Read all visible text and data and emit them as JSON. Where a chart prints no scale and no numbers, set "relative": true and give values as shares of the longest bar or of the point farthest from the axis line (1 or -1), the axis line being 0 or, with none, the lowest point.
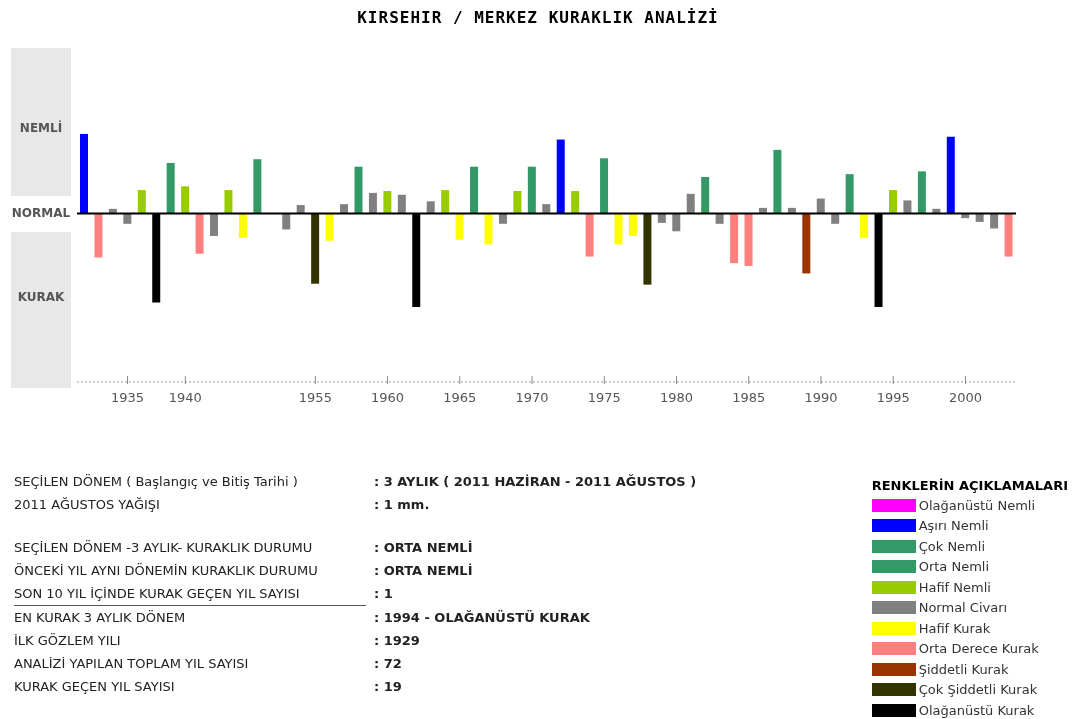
{
  "chart_data": {
    "type": "bar",
    "title": "KIRSEHIR / MERKEZ KURAKLIK ANALİZİ",
    "relative": true,
    "stacked": true,
    "legend": "bottom right",
    "legend_title": "RENKLERİN AÇIKLAMALARI",
    "categories": [
      null,
      null,
      null,
      "1935",
      null,
      null,
      null,
      "1940",
      null,
      null,
      null,
      null,
      null,
      null,
      null,
      null,
      "1955",
      null,
      null,
      null,
      null,
      "1960",
      null,
      null,
      null,
      null,
      "1965",
      null,
      null,
      null,
      null,
      "1970",
      null,
      null,
      null,
      null,
      "1975",
      null,
      null,
      null,
      null,
      "1980",
      null,
      null,
      null,
      null,
      "1985",
      null,
      null,
      null,
      null,
      "1990",
      null,
      null,
      null,
      null,
      "1995",
      null,
      null,
      null,
      null,
      "2000",
      null,
      null,
      null
    ],
    "series": [
      {
        "name": "Olağanüstü Nemli",
        "color": "#ff00ff",
        "values": [
          null,
          null,
          null,
          null,
          null,
          null,
          null,
          null,
          null,
          null,
          null,
          null,
          null,
          null,
          null,
          null,
          null,
          null,
          null,
          null,
          null,
          null,
          null,
          null,
          null,
          null,
          null,
          null,
          null,
          null,
          null,
          null,
          null,
          null,
          null,
          null,
          null,
          null,
          null,
          null,
          null,
          null,
          null,
          null,
          null,
          null,
          null,
          null,
          null,
          null,
          null,
          null,
          null,
          null,
          null,
          null,
          null,
          null,
          null,
          null,
          null,
          null,
          null,
          null,
          null
        ]
      },
      {
        "name": "Aşırı Nemli",
        "color": "#0000ff",
        "values": [
          0.85,
          null,
          null,
          null,
          null,
          null,
          null,
          null,
          null,
          null,
          null,
          null,
          null,
          null,
          null,
          null,
          null,
          null,
          null,
          null,
          null,
          null,
          null,
          null,
          null,
          null,
          null,
          null,
          null,
          null,
          null,
          null,
          null,
          0.79,
          null,
          null,
          null,
          null,
          null,
          null,
          null,
          null,
          null,
          null,
          null,
          null,
          null,
          null,
          null,
          null,
          null,
          null,
          null,
          null,
          null,
          null,
          null,
          null,
          null,
          null,
          0.82,
          null,
          null,
          null,
          null
        ]
      },
      {
        "name": "Çok Nemli",
        "color": "#339966",
        "values": [
          null,
          null,
          null,
          null,
          null,
          null,
          0.54,
          null,
          null,
          null,
          null,
          null,
          0.58,
          null,
          null,
          null,
          null,
          null,
          null,
          null,
          null,
          null,
          null,
          null,
          null,
          null,
          null,
          null,
          null,
          null,
          null,
          null,
          null,
          null,
          null,
          null,
          0.59,
          null,
          null,
          null,
          null,
          null,
          null,
          null,
          null,
          null,
          null,
          null,
          0.68,
          null,
          null,
          null,
          null,
          null,
          null,
          null,
          null,
          null,
          null,
          null,
          null,
          null,
          null,
          null,
          null
        ]
      },
      {
        "name": "Orta Nemli",
        "color": "#339966",
        "values": [
          null,
          null,
          null,
          null,
          null,
          null,
          null,
          null,
          null,
          null,
          null,
          null,
          null,
          null,
          null,
          null,
          null,
          null,
          null,
          0.5,
          null,
          null,
          null,
          null,
          null,
          null,
          null,
          0.5,
          null,
          null,
          null,
          0.5,
          null,
          null,
          null,
          null,
          null,
          null,
          null,
          null,
          null,
          null,
          null,
          0.39,
          null,
          null,
          null,
          null,
          null,
          null,
          null,
          null,
          null,
          0.42,
          null,
          null,
          null,
          null,
          0.45,
          null,
          null,
          null,
          null,
          null,
          null
        ]
      },
      {
        "name": "Hafif Nemli",
        "color": "#99cc00",
        "values": [
          null,
          null,
          null,
          null,
          0.25,
          null,
          null,
          0.29,
          null,
          null,
          0.25,
          null,
          null,
          null,
          null,
          null,
          null,
          null,
          null,
          null,
          null,
          0.24,
          null,
          null,
          null,
          0.25,
          null,
          null,
          null,
          null,
          0.24,
          null,
          null,
          null,
          0.24,
          null,
          null,
          null,
          null,
          null,
          null,
          null,
          null,
          null,
          null,
          null,
          null,
          null,
          null,
          null,
          null,
          null,
          null,
          null,
          null,
          null,
          0.25,
          null,
          null,
          null,
          null,
          null,
          null,
          null,
          null
        ]
      },
      {
        "name": "Normal Civarı",
        "color": "#808080",
        "values": [
          null,
          null,
          0.05,
          -0.11,
          null,
          null,
          null,
          null,
          null,
          -0.24,
          null,
          null,
          null,
          null,
          -0.17,
          0.09,
          null,
          null,
          0.1,
          null,
          0.22,
          null,
          0.2,
          null,
          0.13,
          null,
          null,
          null,
          null,
          -0.11,
          null,
          null,
          0.1,
          null,
          null,
          null,
          null,
          null,
          null,
          null,
          -0.1,
          -0.19,
          0.21,
          null,
          -0.11,
          null,
          null,
          0.06,
          null,
          0.06,
          null,
          0.16,
          -0.11,
          null,
          null,
          null,
          null,
          0.14,
          null,
          0.05,
          null,
          -0.05,
          -0.09,
          -0.16,
          null
        ]
      },
      {
        "name": "Hafif Kurak",
        "color": "#ffff00",
        "values": [
          null,
          null,
          null,
          null,
          null,
          null,
          null,
          null,
          null,
          null,
          null,
          -0.26,
          null,
          null,
          null,
          null,
          null,
          -0.29,
          null,
          null,
          null,
          null,
          null,
          null,
          null,
          null,
          -0.28,
          null,
          -0.33,
          null,
          null,
          null,
          null,
          null,
          null,
          null,
          null,
          -0.33,
          -0.24,
          null,
          null,
          null,
          null,
          null,
          null,
          null,
          null,
          null,
          null,
          null,
          null,
          null,
          null,
          null,
          -0.26,
          null,
          null,
          null,
          null,
          null,
          null,
          null,
          null,
          null,
          null
        ]
      },
      {
        "name": "Orta Derece Kurak",
        "color": "#ff7f7f",
        "values": [
          null,
          -0.47,
          null,
          null,
          null,
          null,
          null,
          null,
          -0.43,
          null,
          null,
          null,
          null,
          null,
          null,
          null,
          null,
          null,
          null,
          null,
          null,
          null,
          null,
          null,
          null,
          null,
          null,
          null,
          null,
          null,
          null,
          null,
          null,
          null,
          null,
          -0.46,
          null,
          null,
          null,
          null,
          null,
          null,
          null,
          null,
          null,
          -0.53,
          -0.56,
          null,
          null,
          null,
          null,
          null,
          null,
          null,
          null,
          null,
          null,
          null,
          null,
          null,
          null,
          null,
          null,
          null,
          -0.46
        ]
      },
      {
        "name": "Şiddetli Kurak",
        "color": "#993300",
        "values": [
          null,
          null,
          null,
          null,
          null,
          null,
          null,
          null,
          null,
          null,
          null,
          null,
          null,
          null,
          null,
          null,
          null,
          null,
          null,
          null,
          null,
          null,
          null,
          null,
          null,
          null,
          null,
          null,
          null,
          null,
          null,
          null,
          null,
          null,
          null,
          null,
          null,
          null,
          null,
          null,
          null,
          null,
          null,
          null,
          null,
          null,
          null,
          null,
          null,
          null,
          -0.64,
          null,
          null,
          null,
          null,
          null,
          null,
          null,
          null,
          null,
          null,
          null,
          null,
          null,
          null
        ]
      },
      {
        "name": "Çok Şiddetli Kurak",
        "color": "#333300",
        "values": [
          null,
          null,
          null,
          null,
          null,
          null,
          null,
          null,
          null,
          null,
          null,
          null,
          null,
          null,
          null,
          null,
          -0.75,
          null,
          null,
          null,
          null,
          null,
          null,
          null,
          null,
          null,
          null,
          null,
          null,
          null,
          null,
          null,
          null,
          null,
          null,
          null,
          null,
          null,
          null,
          -0.76,
          null,
          null,
          null,
          null,
          null,
          null,
          null,
          null,
          null,
          null,
          null,
          null,
          null,
          null,
          null,
          null,
          null,
          null,
          null,
          null,
          null,
          null,
          null,
          null,
          null
        ]
      },
      {
        "name": "Olağanüstü Kurak",
        "color": "#000000",
        "values": [
          null,
          null,
          null,
          null,
          null,
          -0.95,
          null,
          null,
          null,
          null,
          null,
          null,
          null,
          null,
          null,
          null,
          null,
          null,
          null,
          null,
          null,
          null,
          null,
          -1,
          null,
          null,
          null,
          null,
          null,
          null,
          null,
          null,
          null,
          null,
          null,
          null,
          null,
          null,
          null,
          null,
          null,
          null,
          null,
          null,
          null,
          null,
          null,
          null,
          null,
          null,
          null,
          null,
          null,
          null,
          null,
          -1,
          null,
          null,
          null,
          null,
          null,
          null,
          null,
          null,
          null
        ]
      }
    ],
    "annotations": [
      "NEMLİ",
      "NORMAL",
      "KURAK",
      "SEÇİLEN DÖNEM ( Başlangıç ve Bitiş Tarihi )",
      ": 3 AYLIK ( 2011 HAZİRAN - 2011 AĞUSTOS )",
      "2011 AĞUSTOS YAĞIŞI",
      ": 1 mm.",
      "SEÇİLEN DÖNEM -3 AYLIK- KURAKLIK DURUMU",
      ": ORTA NEMLİ",
      "ÖNCEKİ YIL AYNI DÖNEMİN KURAKLIK DURUMU",
      ": ORTA NEMLİ",
      "SON 10 YIL İÇİNDE KURAK GEÇEN YIL SAYISI",
      ": 1",
      "EN KURAK 3 AYLIK DÖNEM",
      ": 1994 - OLAĞANÜSTÜ KURAK",
      "İLK GÖZLEM YILI",
      ": 1929",
      "ANALİZİ YAPILAN TOPLAM YIL SAYISI",
      ": 72",
      "KURAK GEÇEN YIL SAYISI",
      ": 19"
    ]
  }
}
